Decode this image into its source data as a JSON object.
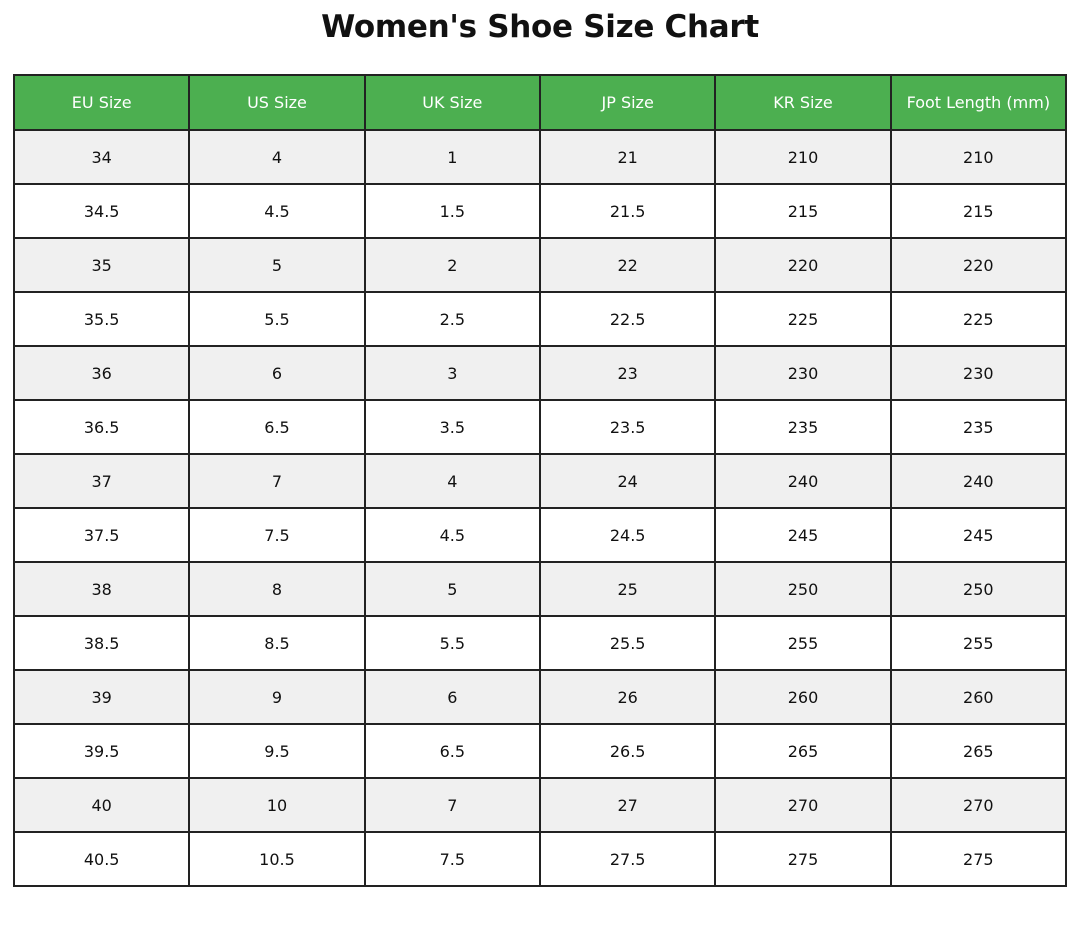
{
  "title": "Women's Shoe Size Chart",
  "table": {
    "columns": [
      "EU Size",
      "US Size",
      "UK Size",
      "JP Size",
      "KR Size",
      "Foot Length (mm)"
    ],
    "rows": [
      [
        "34",
        "4",
        "1",
        "21",
        "210",
        "210"
      ],
      [
        "34.5",
        "4.5",
        "1.5",
        "21.5",
        "215",
        "215"
      ],
      [
        "35",
        "5",
        "2",
        "22",
        "220",
        "220"
      ],
      [
        "35.5",
        "5.5",
        "2.5",
        "22.5",
        "225",
        "225"
      ],
      [
        "36",
        "6",
        "3",
        "23",
        "230",
        "230"
      ],
      [
        "36.5",
        "6.5",
        "3.5",
        "23.5",
        "235",
        "235"
      ],
      [
        "37",
        "7",
        "4",
        "24",
        "240",
        "240"
      ],
      [
        "37.5",
        "7.5",
        "4.5",
        "24.5",
        "245",
        "245"
      ],
      [
        "38",
        "8",
        "5",
        "25",
        "250",
        "250"
      ],
      [
        "38.5",
        "8.5",
        "5.5",
        "25.5",
        "255",
        "255"
      ],
      [
        "39",
        "9",
        "6",
        "26",
        "260",
        "260"
      ],
      [
        "39.5",
        "9.5",
        "6.5",
        "26.5",
        "265",
        "265"
      ],
      [
        "40",
        "10",
        "7",
        "27",
        "270",
        "270"
      ],
      [
        "40.5",
        "10.5",
        "7.5",
        "27.5",
        "275",
        "275"
      ]
    ]
  }
}
